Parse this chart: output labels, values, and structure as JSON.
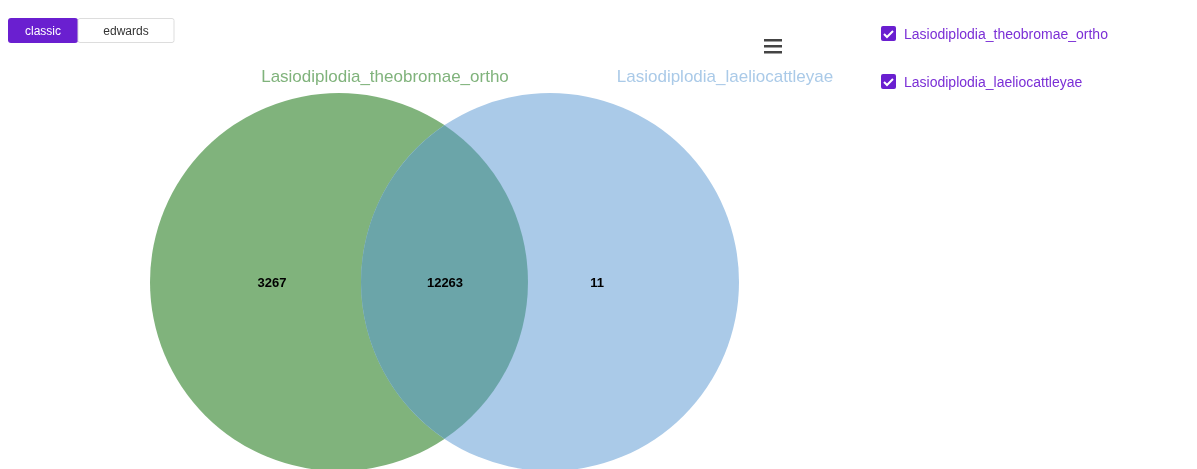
{
  "chart_data": {
    "type": "other",
    "categories": [
      null,
      null,
      null
    ],
    "values": [
      3267,
      12263,
      11
    ],
    "colors": [
      "#80b37c",
      "#6ba5a9",
      "#aacae8"
    ],
    "data_labels": true,
    "annotations": [
      "classic",
      "edwards",
      "Lasiodiplodia_theobromae_ortho",
      "Lasiodiplodia_laeliocattleyae",
      "Lasiodiplodia_theobromae_ortho",
      "Lasiodiplodia_laeliocattleyae"
    ]
  }
}
